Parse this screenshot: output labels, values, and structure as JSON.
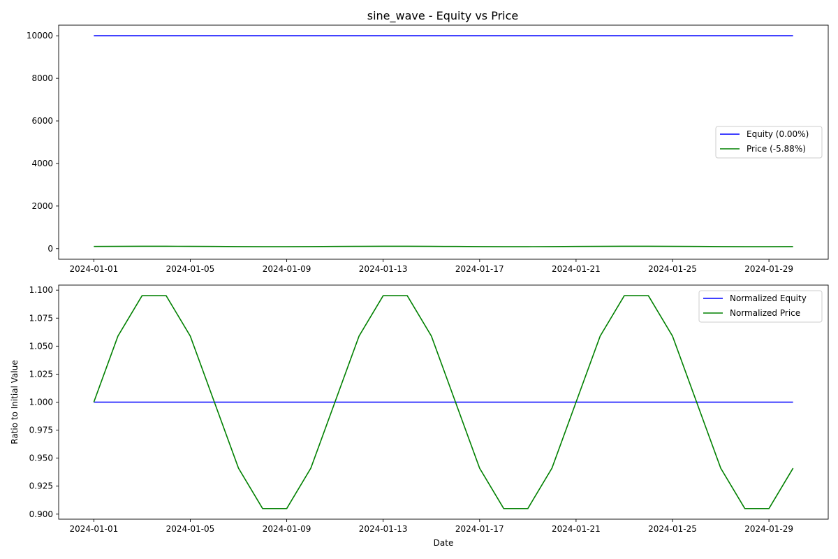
{
  "figure_title": "sine_wave - Equity vs Price",
  "chart_data": [
    {
      "type": "line",
      "title": "sine_wave - Equity vs Price",
      "xlabel": "",
      "ylabel": "",
      "x": [
        "2024-01-01",
        "2024-01-02",
        "2024-01-03",
        "2024-01-04",
        "2024-01-05",
        "2024-01-06",
        "2024-01-07",
        "2024-01-08",
        "2024-01-09",
        "2024-01-10",
        "2024-01-11",
        "2024-01-12",
        "2024-01-13",
        "2024-01-14",
        "2024-01-15",
        "2024-01-16",
        "2024-01-17",
        "2024-01-18",
        "2024-01-19",
        "2024-01-20",
        "2024-01-21",
        "2024-01-22",
        "2024-01-23",
        "2024-01-24",
        "2024-01-25",
        "2024-01-26",
        "2024-01-27",
        "2024-01-28",
        "2024-01-29",
        "2024-01-30"
      ],
      "xticks": [
        "2024-01-01",
        "2024-01-05",
        "2024-01-09",
        "2024-01-13",
        "2024-01-17",
        "2024-01-21",
        "2024-01-25",
        "2024-01-29"
      ],
      "xlim": [
        "2023-12-30T13:00",
        "2024-01-31T11:00"
      ],
      "yticks": [
        0,
        2000,
        4000,
        6000,
        8000,
        10000
      ],
      "ylim": [
        -500,
        10500
      ],
      "grid": false,
      "legend_location": "center-right",
      "series": [
        {
          "name": "Equity (0.00%)",
          "color": "#0000ff",
          "values": [
            10000,
            10000,
            10000,
            10000,
            10000,
            10000,
            10000,
            10000,
            10000,
            10000,
            10000,
            10000,
            10000,
            10000,
            10000,
            10000,
            10000,
            10000,
            10000,
            10000,
            10000,
            10000,
            10000,
            10000,
            10000,
            10000,
            10000,
            10000,
            10000,
            10000
          ]
        },
        {
          "name": "Price (-5.88%)",
          "color": "#008000",
          "values": [
            100,
            105.9,
            109.5,
            109.5,
            105.9,
            100,
            94.1,
            90.5,
            90.5,
            94.1,
            100,
            105.9,
            109.5,
            109.5,
            105.9,
            100,
            94.1,
            90.5,
            90.5,
            94.1,
            100,
            105.9,
            109.5,
            109.5,
            105.9,
            100,
            94.1,
            90.5,
            90.5,
            94.1
          ]
        }
      ]
    },
    {
      "type": "line",
      "title": "",
      "xlabel": "Date",
      "ylabel": "Ratio to Initial Value",
      "x": [
        "2024-01-01",
        "2024-01-02",
        "2024-01-03",
        "2024-01-04",
        "2024-01-05",
        "2024-01-06",
        "2024-01-07",
        "2024-01-08",
        "2024-01-09",
        "2024-01-10",
        "2024-01-11",
        "2024-01-12",
        "2024-01-13",
        "2024-01-14",
        "2024-01-15",
        "2024-01-16",
        "2024-01-17",
        "2024-01-18",
        "2024-01-19",
        "2024-01-20",
        "2024-01-21",
        "2024-01-22",
        "2024-01-23",
        "2024-01-24",
        "2024-01-25",
        "2024-01-26",
        "2024-01-27",
        "2024-01-28",
        "2024-01-29",
        "2024-01-30"
      ],
      "xticks": [
        "2024-01-01",
        "2024-01-05",
        "2024-01-09",
        "2024-01-13",
        "2024-01-17",
        "2024-01-21",
        "2024-01-25",
        "2024-01-29"
      ],
      "xlim": [
        "2023-12-30T13:00",
        "2024-01-31T11:00"
      ],
      "yticks": [
        "0.900",
        "0.925",
        "0.950",
        "0.975",
        "1.000",
        "1.025",
        "1.050",
        "1.075",
        "1.100"
      ],
      "ylim": [
        0.8955,
        1.1045
      ],
      "grid": false,
      "legend_location": "top-right",
      "series": [
        {
          "name": "Normalized Equity",
          "color": "#0000ff",
          "values": [
            1,
            1,
            1,
            1,
            1,
            1,
            1,
            1,
            1,
            1,
            1,
            1,
            1,
            1,
            1,
            1,
            1,
            1,
            1,
            1,
            1,
            1,
            1,
            1,
            1,
            1,
            1,
            1,
            1,
            1
          ]
        },
        {
          "name": "Normalized Price",
          "color": "#008000",
          "values": [
            1.0,
            1.059,
            1.095,
            1.095,
            1.059,
            1.0,
            0.941,
            0.905,
            0.905,
            0.941,
            1.0,
            1.059,
            1.095,
            1.095,
            1.059,
            1.0,
            0.941,
            0.905,
            0.905,
            0.941,
            1.0,
            1.059,
            1.095,
            1.095,
            1.059,
            1.0,
            0.941,
            0.905,
            0.905,
            0.941
          ]
        }
      ]
    }
  ]
}
